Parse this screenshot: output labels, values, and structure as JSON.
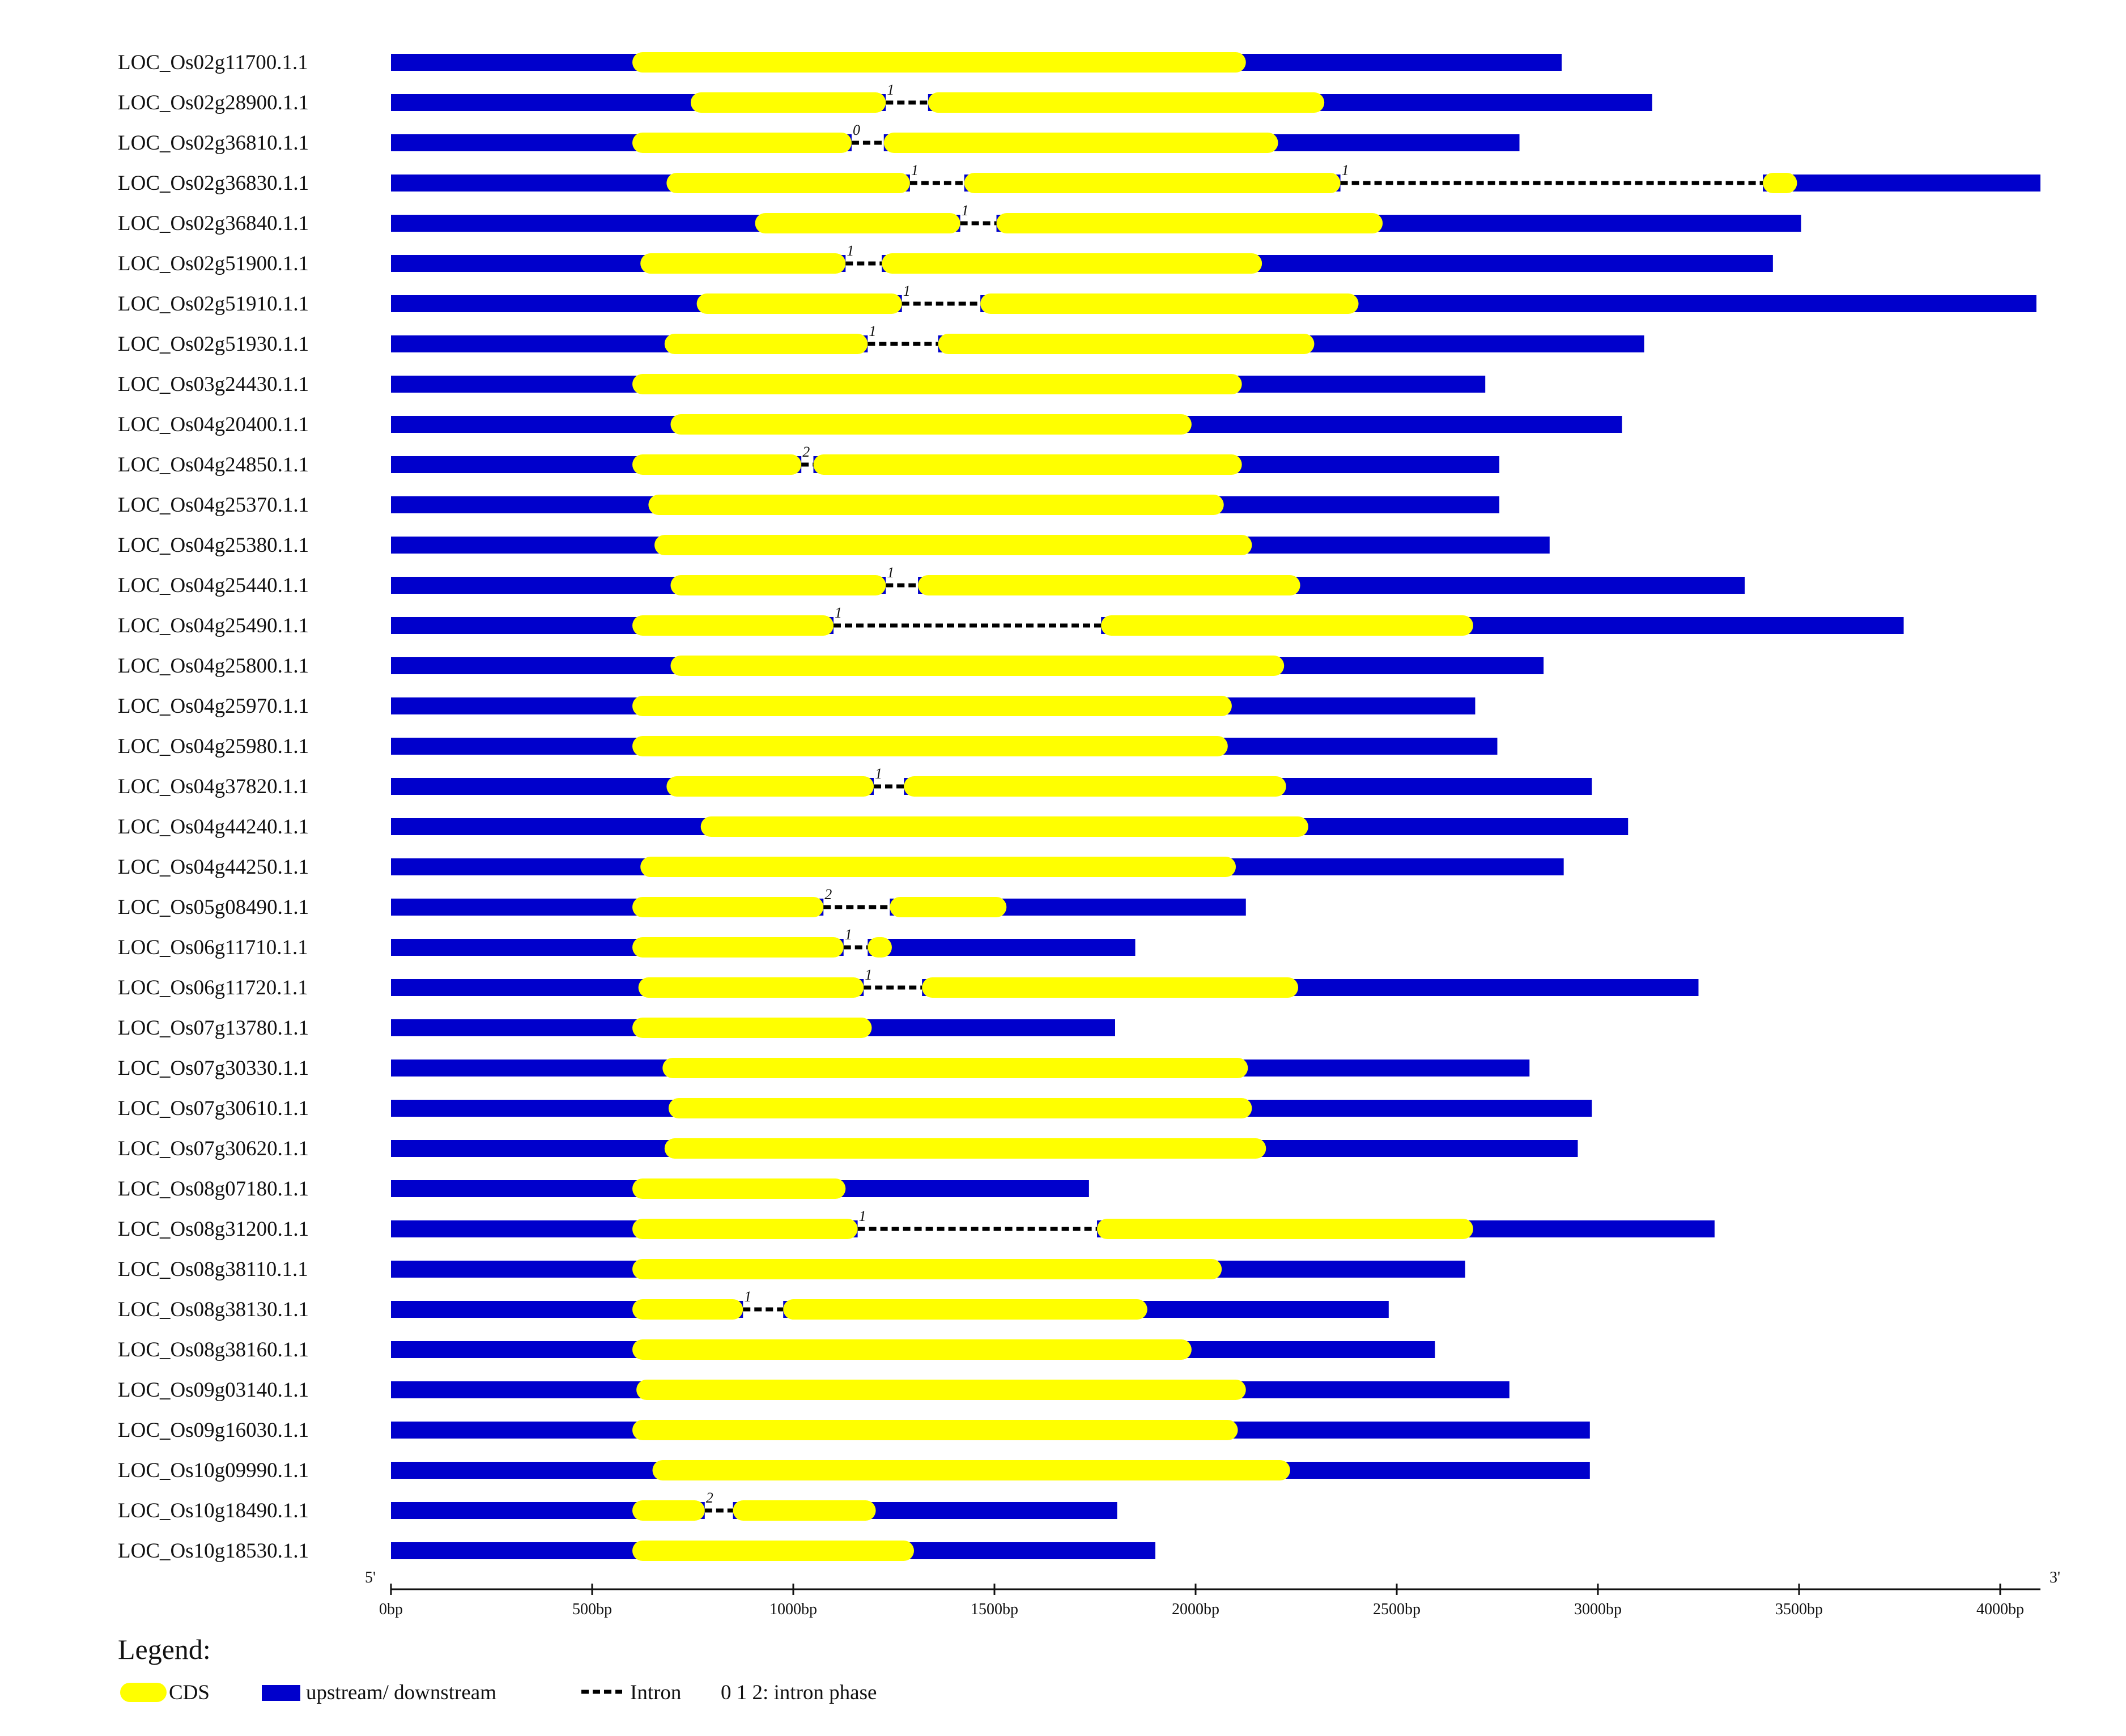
{
  "axis": {
    "five_prime": "5'",
    "three_prime": "3'",
    "max_bp": 4100,
    "ticks": [
      {
        "bp": 0,
        "label": "0bp"
      },
      {
        "bp": 500,
        "label": "500bp"
      },
      {
        "bp": 1000,
        "label": "1000bp"
      },
      {
        "bp": 1500,
        "label": "1500bp"
      },
      {
        "bp": 2000,
        "label": "2000bp"
      },
      {
        "bp": 2500,
        "label": "2500bp"
      },
      {
        "bp": 3000,
        "label": "3000bp"
      },
      {
        "bp": 3500,
        "label": "3500bp"
      },
      {
        "bp": 4000,
        "label": "4000bp"
      }
    ]
  },
  "legend": {
    "title": "Legend:",
    "cds": "CDS",
    "utr": "upstream/ downstream",
    "intron": "Intron",
    "phase": "0 1 2: intron phase"
  },
  "colors": {
    "cds": "#ffff00",
    "utr": "#0000cc",
    "intron": "#000000"
  },
  "chart_data": {
    "type": "gene-structure",
    "genes": [
      {
        "name": "LOC_Os02g11700.1.1",
        "length": 2910,
        "cds": [
          [
            600,
            2125
          ]
        ],
        "introns": []
      },
      {
        "name": "LOC_Os02g28900.1.1",
        "length": 3135,
        "cds": [
          [
            745,
            1230
          ],
          [
            1335,
            2320
          ]
        ],
        "introns": [
          {
            "start": 1230,
            "end": 1335,
            "phase": "1"
          }
        ]
      },
      {
        "name": "LOC_Os02g36810.1.1",
        "length": 2805,
        "cds": [
          [
            600,
            1145
          ],
          [
            1225,
            2205
          ]
        ],
        "introns": [
          {
            "start": 1145,
            "end": 1225,
            "phase": "0"
          }
        ]
      },
      {
        "name": "LOC_Os02g36830.1.1",
        "length": 4100,
        "cds": [
          [
            685,
            1290
          ],
          [
            1425,
            2360
          ],
          [
            3410,
            3495
          ]
        ],
        "introns": [
          {
            "start": 1290,
            "end": 1425,
            "phase": "1"
          },
          {
            "start": 2360,
            "end": 3410,
            "phase": "1"
          }
        ]
      },
      {
        "name": "LOC_Os02g36840.1.1",
        "length": 3505,
        "cds": [
          [
            905,
            1415
          ],
          [
            1505,
            2465
          ]
        ],
        "introns": [
          {
            "start": 1415,
            "end": 1505,
            "phase": "1"
          }
        ]
      },
      {
        "name": "LOC_Os02g51900.1.1",
        "length": 3435,
        "cds": [
          [
            620,
            1130
          ],
          [
            1220,
            2165
          ]
        ],
        "introns": [
          {
            "start": 1130,
            "end": 1220,
            "phase": "1"
          }
        ]
      },
      {
        "name": "LOC_Os02g51910.1.1",
        "length": 4090,
        "cds": [
          [
            760,
            1270
          ],
          [
            1465,
            2405
          ]
        ],
        "introns": [
          {
            "start": 1270,
            "end": 1465,
            "phase": "1"
          }
        ]
      },
      {
        "name": "LOC_Os02g51930.1.1",
        "length": 3115,
        "cds": [
          [
            680,
            1185
          ],
          [
            1360,
            2295
          ]
        ],
        "introns": [
          {
            "start": 1185,
            "end": 1360,
            "phase": "1"
          }
        ]
      },
      {
        "name": "LOC_Os03g24430.1.1",
        "length": 2720,
        "cds": [
          [
            600,
            2115
          ]
        ],
        "introns": []
      },
      {
        "name": "LOC_Os04g20400.1.1",
        "length": 3060,
        "cds": [
          [
            695,
            1990
          ]
        ],
        "introns": []
      },
      {
        "name": "LOC_Os04g24850.1.1",
        "length": 2755,
        "cds": [
          [
            600,
            1020
          ],
          [
            1050,
            2115
          ]
        ],
        "introns": [
          {
            "start": 1020,
            "end": 1050,
            "phase": "2"
          }
        ]
      },
      {
        "name": "LOC_Os04g25370.1.1",
        "length": 2755,
        "cds": [
          [
            640,
            2070
          ]
        ],
        "introns": []
      },
      {
        "name": "LOC_Os04g25380.1.1",
        "length": 2880,
        "cds": [
          [
            655,
            2140
          ]
        ],
        "introns": []
      },
      {
        "name": "LOC_Os04g25440.1.1",
        "length": 3365,
        "cds": [
          [
            695,
            1230
          ],
          [
            1310,
            2260
          ]
        ],
        "introns": [
          {
            "start": 1230,
            "end": 1310,
            "phase": "1"
          }
        ]
      },
      {
        "name": "LOC_Os04g25490.1.1",
        "length": 3760,
        "cds": [
          [
            600,
            1100
          ],
          [
            1765,
            2690
          ]
        ],
        "introns": [
          {
            "start": 1100,
            "end": 1765,
            "phase": "1"
          }
        ]
      },
      {
        "name": "LOC_Os04g25800.1.1",
        "length": 2865,
        "cds": [
          [
            695,
            2220
          ]
        ],
        "introns": []
      },
      {
        "name": "LOC_Os04g25970.1.1",
        "length": 2695,
        "cds": [
          [
            600,
            2090
          ]
        ],
        "introns": []
      },
      {
        "name": "LOC_Os04g25980.1.1",
        "length": 2750,
        "cds": [
          [
            600,
            2080
          ]
        ],
        "introns": []
      },
      {
        "name": "LOC_Os04g37820.1.1",
        "length": 2985,
        "cds": [
          [
            685,
            1200
          ],
          [
            1275,
            2225
          ]
        ],
        "introns": [
          {
            "start": 1200,
            "end": 1275,
            "phase": "1"
          }
        ]
      },
      {
        "name": "LOC_Os04g44240.1.1",
        "length": 3075,
        "cds": [
          [
            770,
            2280
          ]
        ],
        "introns": []
      },
      {
        "name": "LOC_Os04g44250.1.1",
        "length": 2915,
        "cds": [
          [
            620,
            2100
          ]
        ],
        "introns": []
      },
      {
        "name": "LOC_Os05g08490.1.1",
        "length": 2125,
        "cds": [
          [
            600,
            1075
          ],
          [
            1240,
            1530
          ]
        ],
        "introns": [
          {
            "start": 1075,
            "end": 1240,
            "phase": "2"
          }
        ]
      },
      {
        "name": "LOC_Os06g11710.1.1",
        "length": 1850,
        "cds": [
          [
            600,
            1125
          ],
          [
            1185,
            1245
          ]
        ],
        "introns": [
          {
            "start": 1125,
            "end": 1185,
            "phase": "1"
          }
        ]
      },
      {
        "name": "LOC_Os06g11720.1.1",
        "length": 3250,
        "cds": [
          [
            615,
            1175
          ],
          [
            1320,
            2255
          ]
        ],
        "introns": [
          {
            "start": 1175,
            "end": 1320,
            "phase": "1"
          }
        ]
      },
      {
        "name": "LOC_Os07g13780.1.1",
        "length": 1800,
        "cds": [
          [
            600,
            1195
          ]
        ],
        "introns": []
      },
      {
        "name": "LOC_Os07g30330.1.1",
        "length": 2830,
        "cds": [
          [
            675,
            2130
          ]
        ],
        "introns": []
      },
      {
        "name": "LOC_Os07g30610.1.1",
        "length": 2985,
        "cds": [
          [
            690,
            2140
          ]
        ],
        "introns": []
      },
      {
        "name": "LOC_Os07g30620.1.1",
        "length": 2950,
        "cds": [
          [
            680,
            2175
          ]
        ],
        "introns": []
      },
      {
        "name": "LOC_Os08g07180.1.1",
        "length": 1735,
        "cds": [
          [
            600,
            1130
          ]
        ],
        "introns": []
      },
      {
        "name": "LOC_Os08g31200.1.1",
        "length": 3290,
        "cds": [
          [
            600,
            1160
          ],
          [
            1755,
            2690
          ]
        ],
        "introns": [
          {
            "start": 1160,
            "end": 1755,
            "phase": "1"
          }
        ]
      },
      {
        "name": "LOC_Os08g38110.1.1",
        "length": 2670,
        "cds": [
          [
            600,
            2065
          ]
        ],
        "introns": []
      },
      {
        "name": "LOC_Os08g38130.1.1",
        "length": 2480,
        "cds": [
          [
            600,
            875
          ],
          [
            975,
            1880
          ]
        ],
        "introns": [
          {
            "start": 875,
            "end": 975,
            "phase": "1"
          }
        ]
      },
      {
        "name": "LOC_Os08g38160.1.1",
        "length": 2595,
        "cds": [
          [
            600,
            1990
          ]
        ],
        "introns": []
      },
      {
        "name": "LOC_Os09g03140.1.1",
        "length": 2780,
        "cds": [
          [
            610,
            2125
          ]
        ],
        "introns": []
      },
      {
        "name": "LOC_Os09g16030.1.1",
        "length": 2980,
        "cds": [
          [
            600,
            2105
          ]
        ],
        "introns": []
      },
      {
        "name": "LOC_Os10g09990.1.1",
        "length": 2980,
        "cds": [
          [
            650,
            2235
          ]
        ],
        "introns": []
      },
      {
        "name": "LOC_Os10g18490.1.1",
        "length": 1805,
        "cds": [
          [
            600,
            780
          ],
          [
            850,
            1205
          ]
        ],
        "introns": [
          {
            "start": 780,
            "end": 850,
            "phase": "2"
          }
        ]
      },
      {
        "name": "LOC_Os10g18530.1.1",
        "length": 1900,
        "cds": [
          [
            600,
            1300
          ]
        ],
        "introns": []
      }
    ]
  }
}
